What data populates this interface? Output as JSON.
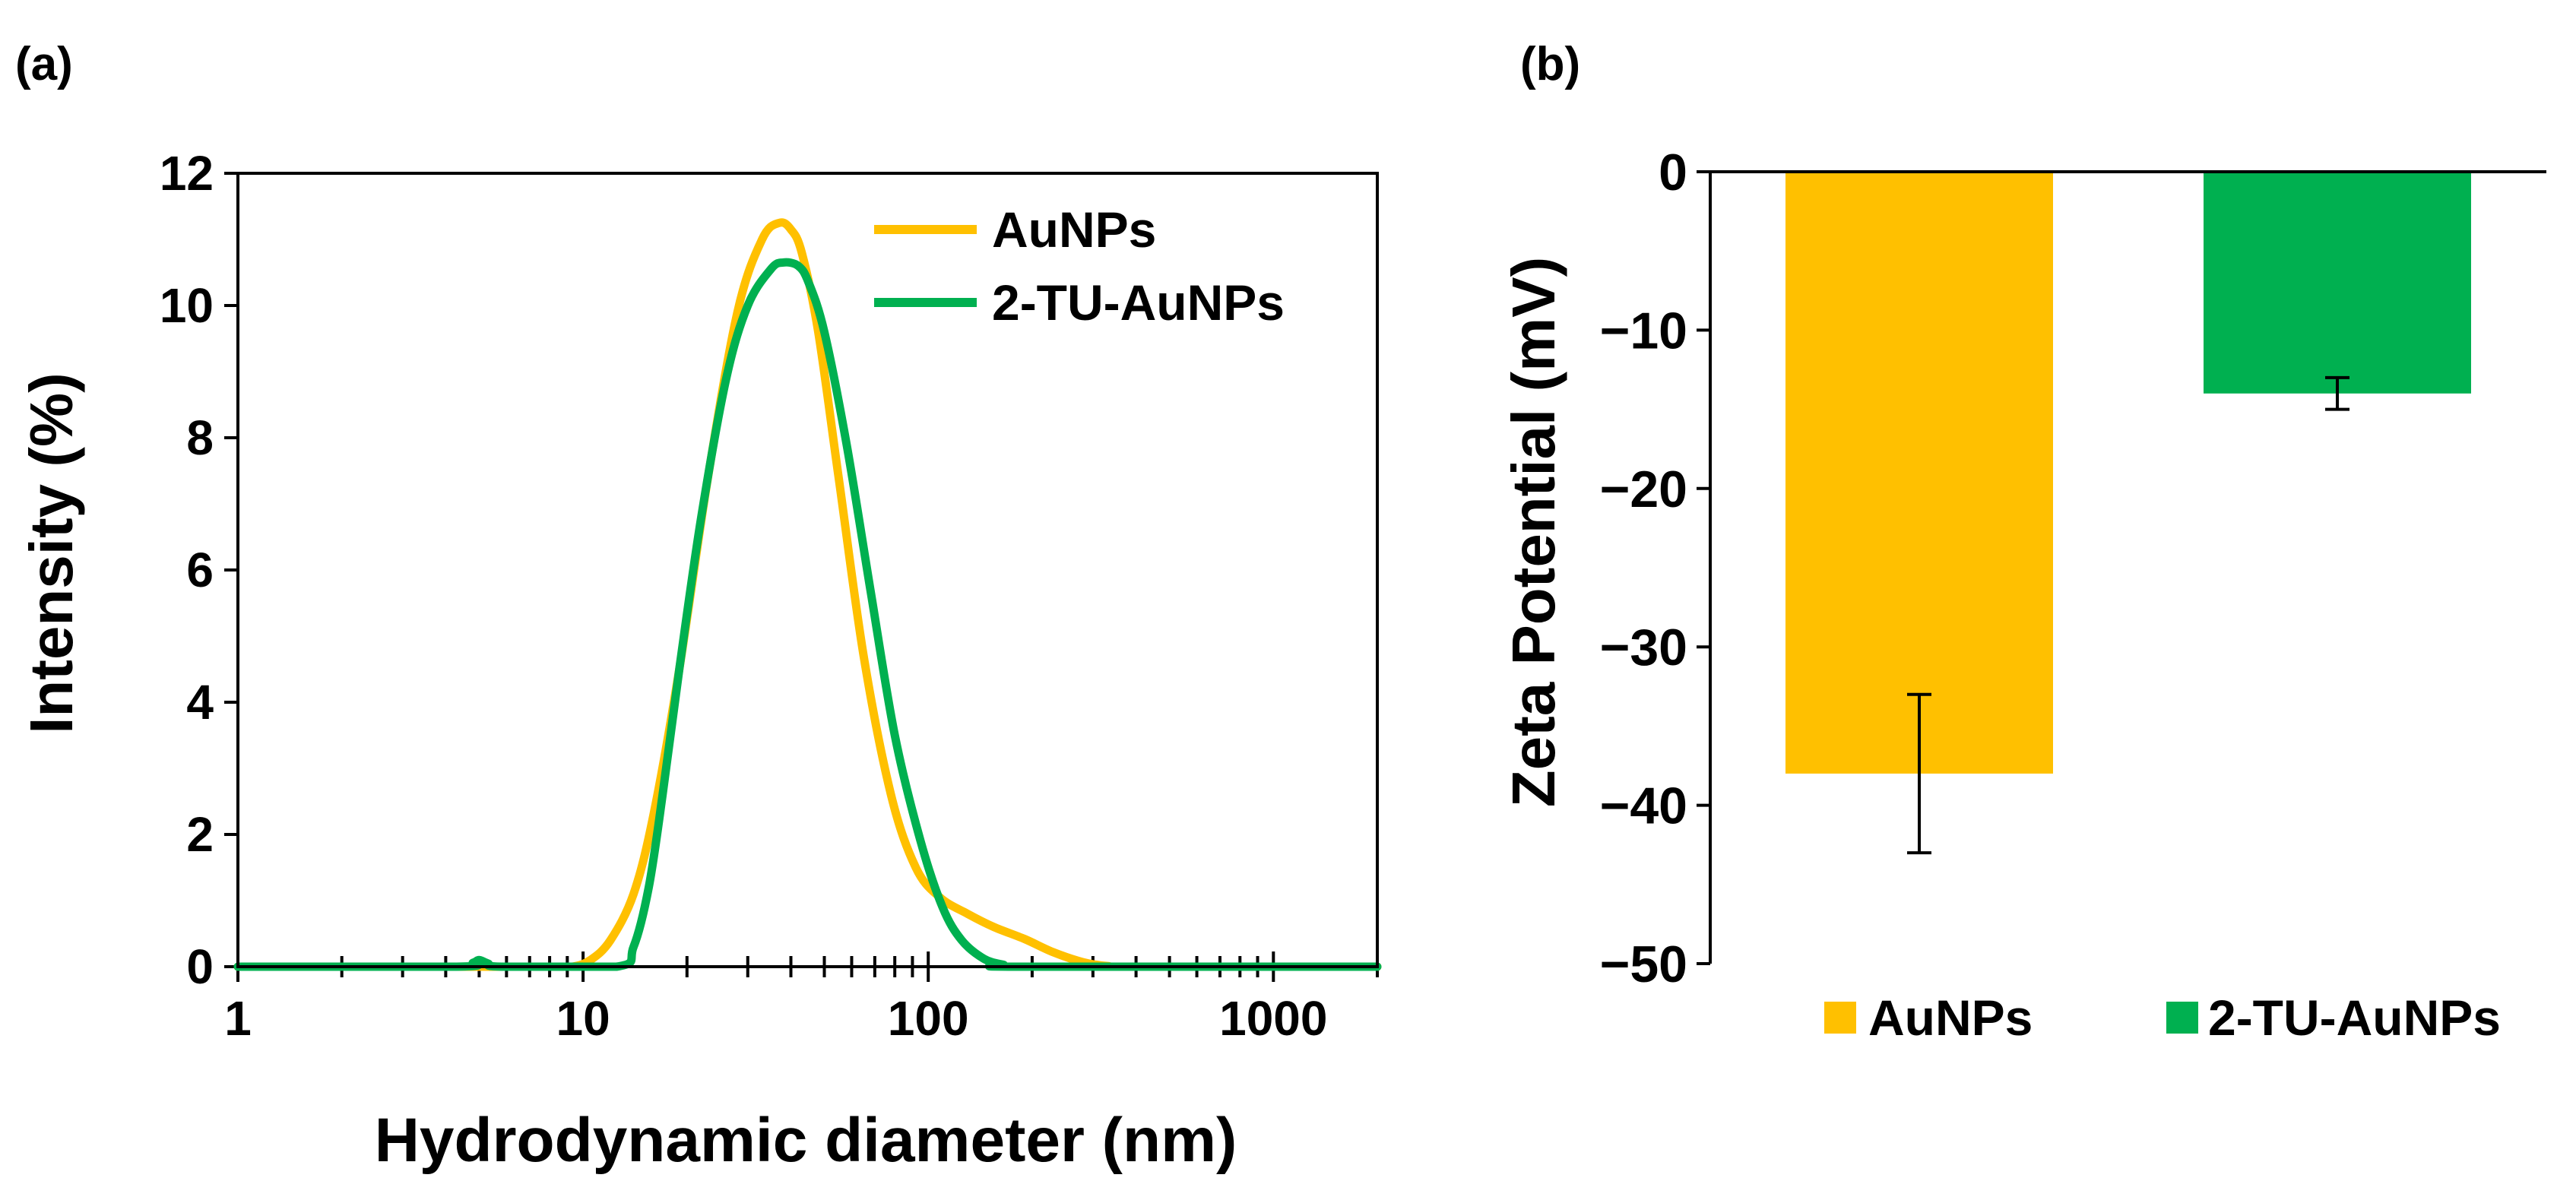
{
  "chart_data": [
    {
      "panel_label": "(a)",
      "type": "line",
      "xscale": "log",
      "xlabel": "Hydrodynamic diameter (nm)",
      "ylabel": "Intensity (%)",
      "xlim": [
        1,
        2000
      ],
      "ylim": [
        0,
        12
      ],
      "xticks": [
        1,
        10,
        100,
        1000
      ],
      "xtick_labels": [
        "1",
        "10",
        "100",
        "1000"
      ],
      "yticks": [
        0,
        2,
        4,
        6,
        8,
        10,
        12
      ],
      "ytick_labels": [
        "0",
        "2",
        "4",
        "6",
        "8",
        "10",
        "12"
      ],
      "legend_position": "top-right",
      "series": [
        {
          "name": "AuNPs",
          "color": "#FFC000",
          "x": [
            1,
            5,
            8,
            9.3,
            10.5,
            12,
            14,
            16,
            19,
            23,
            28,
            33,
            37,
            40,
            43,
            48,
            55,
            65,
            78,
            92,
            108,
            130,
            155,
            190,
            230,
            280,
            330,
            400,
            2000
          ],
          "y": [
            0,
            0,
            0,
            0,
            0.1,
            0.4,
            1.1,
            2.3,
            4.5,
            7.4,
            9.9,
            11.0,
            11.25,
            11.15,
            10.8,
            9.6,
            7.4,
            4.7,
            2.6,
            1.5,
            1.05,
            0.8,
            0.6,
            0.42,
            0.22,
            0.07,
            0.01,
            0,
            0
          ]
        },
        {
          "name": "2-TU-AuNPs",
          "color": "#00B050",
          "x": [
            1,
            4.3,
            4.8,
            5.0,
            5.3,
            5.8,
            12.5,
            14,
            15.5,
            17,
            19,
            22,
            26,
            30,
            35,
            38,
            42,
            45,
            50,
            58,
            68,
            80,
            95,
            110,
            125,
            145,
            165,
            185,
            2000
          ],
          "y": [
            0,
            0,
            0.06,
            0.1,
            0.05,
            0,
            0,
            0.3,
            1.2,
            2.6,
            4.5,
            6.8,
            8.9,
            10.0,
            10.55,
            10.65,
            10.6,
            10.35,
            9.6,
            7.9,
            5.7,
            3.5,
            1.9,
            0.9,
            0.4,
            0.12,
            0.03,
            0,
            0
          ]
        }
      ]
    },
    {
      "panel_label": "(b)",
      "type": "bar",
      "ylabel": "Zeta Potential (mV)",
      "ylim": [
        -50,
        0
      ],
      "yticks": [
        0,
        -10,
        -20,
        -30,
        -40,
        -50
      ],
      "ytick_labels": [
        "0",
        "−10",
        "−20",
        "−30",
        "−40",
        "−50"
      ],
      "legend_position": "bottom",
      "categories": [
        "AuNPs",
        "2-TU-AuNPs"
      ],
      "values": [
        -38,
        -14
      ],
      "errors": [
        5,
        1
      ],
      "colors": [
        "#FFC000",
        "#00B050"
      ]
    }
  ]
}
